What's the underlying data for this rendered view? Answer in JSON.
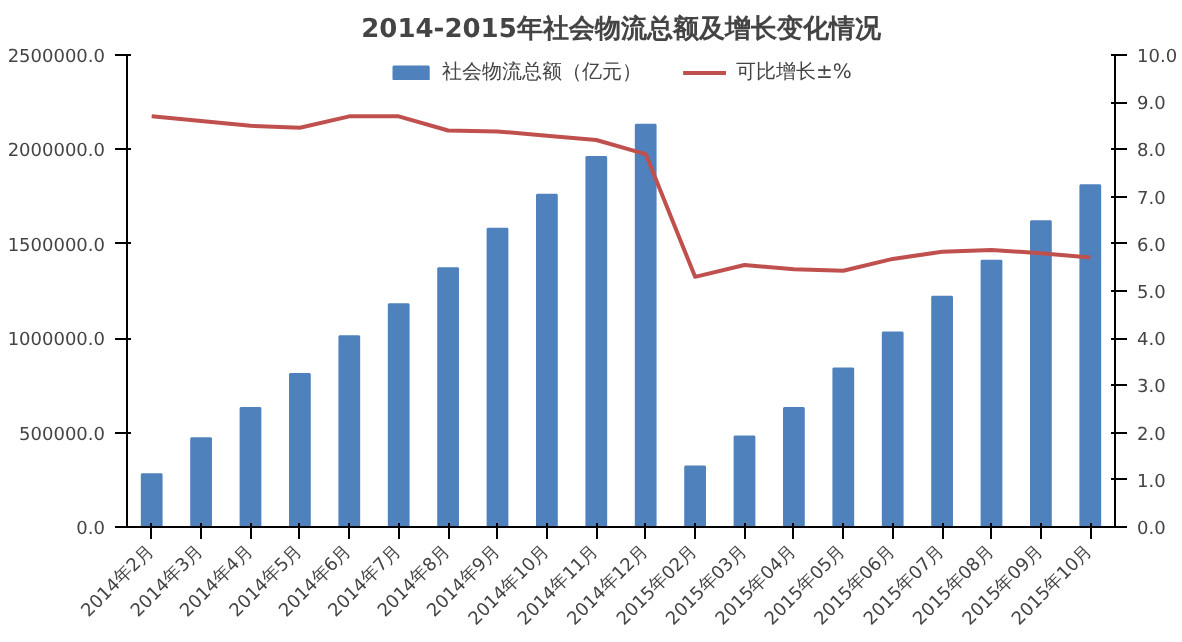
{
  "chart_data": {
    "type": "bar",
    "title": "2014-2015年社会物流总额及增长变化情况",
    "categories": [
      "2014年2月",
      "2014年3月",
      "2014年4月",
      "2014年5月",
      "2014年6月",
      "2014年7月",
      "2014年8月",
      "2014年9月",
      "2014年10月",
      "2014年11月",
      "2014年12月",
      "2015年02月",
      "2015年03月",
      "2015年04月",
      "2015年05月",
      "2015年06月",
      "2015年07月",
      "2015年08月",
      "2015年09月",
      "2015年10月"
    ],
    "series": [
      {
        "name": "社会物流总额（亿元）",
        "color": "#4f81bd",
        "values": [
          280000,
          470000,
          630000,
          810000,
          1010000,
          1180000,
          1370000,
          1580000,
          1760000,
          1960000,
          2130000,
          320000,
          480000,
          630000,
          840000,
          1030000,
          1220000,
          1410000,
          1620000,
          1810000
        ]
      },
      {
        "name": "可比增长±%",
        "type": "line",
        "axis": "y2",
        "color": "#c0504d",
        "values": [
          8.7,
          8.6,
          8.5,
          8.46,
          8.7,
          8.7,
          8.4,
          8.38,
          8.29,
          8.2,
          7.9,
          5.3,
          5.55,
          5.46,
          5.43,
          5.68,
          5.83,
          5.87,
          5.8,
          5.71
        ]
      }
    ],
    "ylim": [
      0,
      2500000
    ],
    "yticks": [
      {
        "value": 0,
        "label": "0.0"
      },
      {
        "value": 500000,
        "label": "500000.0"
      },
      {
        "value": 1000000,
        "label": "1000000.0"
      },
      {
        "value": 1500000,
        "label": "1500000.0"
      },
      {
        "value": 2000000,
        "label": "2000000.0"
      },
      {
        "value": 2500000,
        "label": "2500000.0"
      }
    ],
    "y2lim": [
      0,
      10
    ],
    "y2ticks": [
      {
        "value": 0,
        "label": "0.0"
      },
      {
        "value": 1,
        "label": "1.0"
      },
      {
        "value": 2,
        "label": "2.0"
      },
      {
        "value": 3,
        "label": "3.0"
      },
      {
        "value": 4,
        "label": "4.0"
      },
      {
        "value": 5,
        "label": "5.0"
      },
      {
        "value": 6,
        "label": "6.0"
      },
      {
        "value": 7,
        "label": "7.0"
      },
      {
        "value": 8,
        "label": "8.0"
      },
      {
        "value": 9,
        "label": "9.0"
      },
      {
        "value": 10,
        "label": "10.0"
      }
    ],
    "grid": false,
    "legend": "top",
    "marker": "none",
    "line_style": "solid"
  }
}
